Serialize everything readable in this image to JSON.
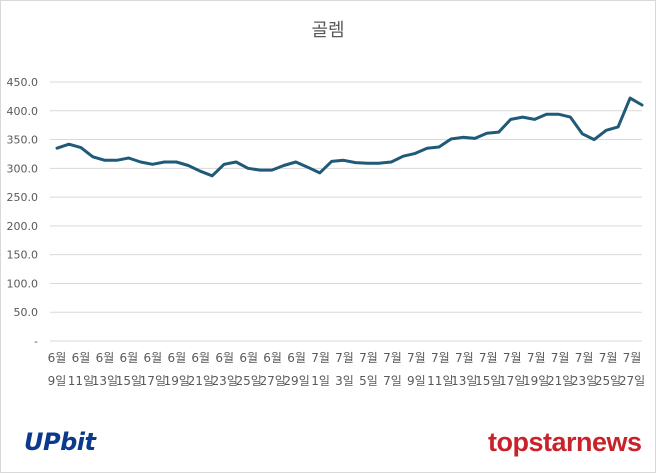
{
  "chart_data": {
    "type": "line",
    "title": "골렘",
    "xlabel": "",
    "ylabel": "",
    "ylim": [
      0,
      450
    ],
    "y_ticks": [
      "-",
      "50.0",
      "100.0",
      "150.0",
      "200.0",
      "250.0",
      "300.0",
      "350.0",
      "400.0",
      "450.0"
    ],
    "x_tick_labels": [
      [
        "6월",
        "9일"
      ],
      [
        "6월",
        "11일"
      ],
      [
        "6월",
        "13일"
      ],
      [
        "6월",
        "15일"
      ],
      [
        "6월",
        "17일"
      ],
      [
        "6월",
        "19일"
      ],
      [
        "6월",
        "21일"
      ],
      [
        "6월",
        "23일"
      ],
      [
        "6월",
        "25일"
      ],
      [
        "6월",
        "27일"
      ],
      [
        "6월",
        "29일"
      ],
      [
        "7월",
        "1일"
      ],
      [
        "7월",
        "3일"
      ],
      [
        "7월",
        "5일"
      ],
      [
        "7월",
        "7일"
      ],
      [
        "7월",
        "9일"
      ],
      [
        "7월",
        "11일"
      ],
      [
        "7월",
        "13일"
      ],
      [
        "7월",
        "15일"
      ],
      [
        "7월",
        "17일"
      ],
      [
        "7월",
        "19일"
      ],
      [
        "7월",
        "21일"
      ],
      [
        "7월",
        "23일"
      ],
      [
        "7월",
        "25일"
      ],
      [
        "7월",
        "27일"
      ]
    ],
    "grid": true,
    "series": [
      {
        "color": "#1f5a78",
        "values": [
          335,
          342,
          336,
          320,
          314,
          314,
          318,
          311,
          307,
          311,
          311,
          305,
          295,
          287,
          307,
          311,
          300,
          297,
          297,
          305,
          311,
          302,
          292,
          312,
          314,
          310,
          309,
          309,
          311,
          321,
          326,
          335,
          337,
          351,
          354,
          352,
          361,
          363,
          385,
          389,
          385,
          394,
          394,
          389,
          360,
          350,
          366,
          372,
          422,
          410
        ]
      }
    ]
  },
  "logos": {
    "left": "UPbit",
    "right": "topstarnews"
  }
}
